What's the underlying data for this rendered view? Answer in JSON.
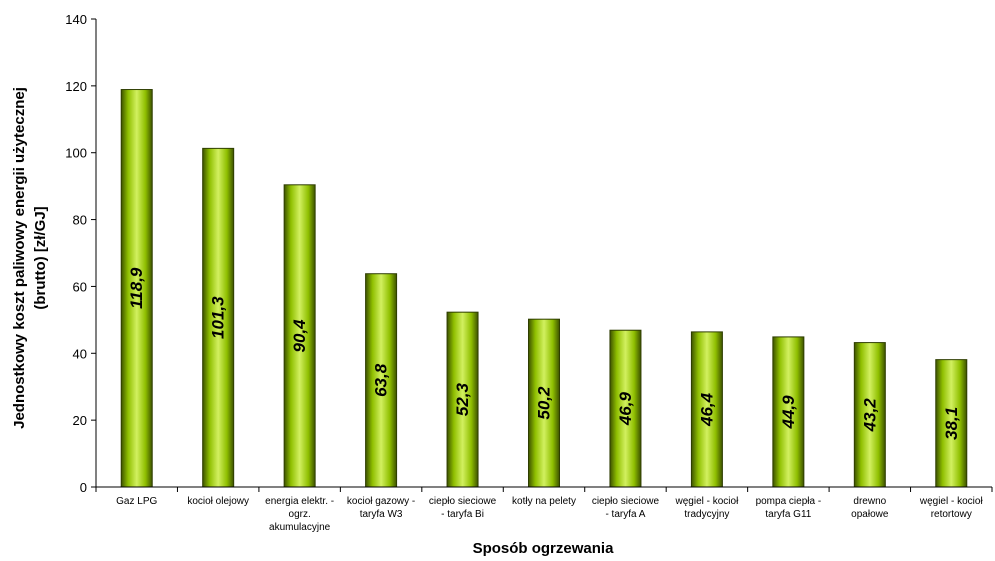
{
  "chart_data": {
    "type": "bar",
    "title": "",
    "xlabel": "Sposób ogrzewania",
    "ylabel_lines": [
      "Jednostkowy koszt paliwowy energii użytecznej",
      "(brutto) [zł/GJ]"
    ],
    "ylim": [
      0,
      140
    ],
    "yticks": [
      0,
      20,
      40,
      60,
      80,
      100,
      120,
      140
    ],
    "grid": false,
    "legend": "none",
    "categories": [
      [
        "Gaz LPG"
      ],
      [
        "kocioł olejowy"
      ],
      [
        "energia elektr. -",
        "ogrz.",
        "akumulacyjne"
      ],
      [
        "kocioł gazowy -",
        "taryfa W3"
      ],
      [
        "ciepło sieciowe",
        "- taryfa Bi"
      ],
      [
        "kotły na pelety"
      ],
      [
        "ciepło sieciowe",
        "- taryfa A"
      ],
      [
        "węgiel - kocioł",
        "tradycyjny"
      ],
      [
        "pompa ciepła -",
        "taryfa G11"
      ],
      [
        "drewno",
        "opałowe"
      ],
      [
        "węgiel - kocioł",
        "retortowy"
      ]
    ],
    "values": [
      118.9,
      101.3,
      90.4,
      63.8,
      52.3,
      50.2,
      46.9,
      46.4,
      44.9,
      43.2,
      38.1
    ],
    "data_labels": [
      "118,9",
      "101,3",
      "90,4",
      "63,8",
      "52,3",
      "50,2",
      "46,9",
      "46,4",
      "44,9",
      "43,2",
      "38,1"
    ],
    "bar_color": "#99cc00"
  }
}
